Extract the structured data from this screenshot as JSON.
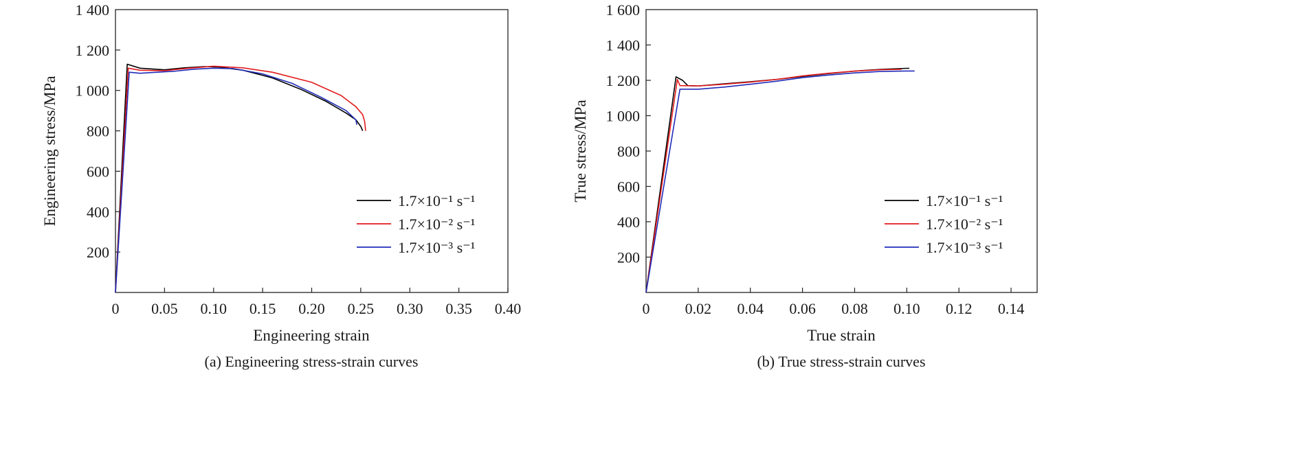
{
  "chart_data": [
    {
      "type": "line",
      "title": "(a) Engineering stress-strain curves",
      "xlabel": "Engineering strain",
      "ylabel": "Engineering stress/MPa",
      "xlim": [
        0,
        0.4
      ],
      "ylim": [
        0,
        1400
      ],
      "x_ticks": [
        0,
        0.05,
        0.1,
        0.15,
        0.2,
        0.25,
        0.3,
        0.35,
        0.4
      ],
      "x_tick_labels": [
        "0",
        "0.05",
        "0.10",
        "0.15",
        "0.20",
        "0.25",
        "0.30",
        "0.35",
        "0.40"
      ],
      "y_ticks": [
        200,
        400,
        600,
        800,
        1000,
        1200,
        1400
      ],
      "y_tick_labels": [
        "200",
        "400",
        "600",
        "800",
        "1 000",
        "1 200",
        "1 400"
      ],
      "grid": false,
      "legend_position": "right-middle",
      "series": [
        {
          "name": "1.7×10⁻¹ s⁻¹",
          "color": "#000000",
          "x": [
            0,
            0.012,
            0.025,
            0.05,
            0.07,
            0.09,
            0.105,
            0.13,
            0.16,
            0.19,
            0.215,
            0.235,
            0.245,
            0.25,
            0.252
          ],
          "y": [
            0,
            1130,
            1110,
            1102,
            1112,
            1118,
            1116,
            1100,
            1062,
            1003,
            945,
            888,
            855,
            822,
            800
          ]
        },
        {
          "name": "1.7×10⁻² s⁻¹",
          "color": "#e31a1c",
          "x": [
            0,
            0.013,
            0.025,
            0.05,
            0.075,
            0.1,
            0.13,
            0.16,
            0.2,
            0.23,
            0.245,
            0.252,
            0.254,
            0.255
          ],
          "y": [
            0,
            1110,
            1100,
            1098,
            1110,
            1120,
            1112,
            1090,
            1040,
            975,
            920,
            880,
            845,
            800
          ]
        },
        {
          "name": "1.7×10⁻³ s⁻¹",
          "color": "#1f2bb8",
          "x": [
            0,
            0.014,
            0.025,
            0.05,
            0.06,
            0.08,
            0.1,
            0.12,
            0.15,
            0.18,
            0.21,
            0.235,
            0.245,
            0.246
          ],
          "y": [
            0,
            1090,
            1085,
            1092,
            1095,
            1105,
            1110,
            1108,
            1082,
            1035,
            965,
            900,
            855,
            830
          ]
        }
      ]
    },
    {
      "type": "line",
      "title": "(b) True stress-strain curves",
      "xlabel": "True strain",
      "ylabel": "True stress/MPa",
      "xlim": [
        0,
        0.15
      ],
      "ylim": [
        0,
        1600
      ],
      "x_ticks": [
        0,
        0.02,
        0.04,
        0.06,
        0.08,
        0.1,
        0.12,
        0.14
      ],
      "x_tick_labels": [
        "0",
        "0.02",
        "0.04",
        "0.06",
        "0.08",
        "0.10",
        "0.12",
        "0.14"
      ],
      "y_ticks": [
        200,
        400,
        600,
        800,
        1000,
        1200,
        1400,
        1600
      ],
      "y_tick_labels": [
        "200",
        "400",
        "600",
        "800",
        "1 000",
        "1 200",
        "1 400",
        "1 600"
      ],
      "grid": false,
      "legend_position": "right-middle",
      "series": [
        {
          "name": "1.7×10⁻¹ s⁻¹",
          "color": "#000000",
          "x": [
            0,
            0.0115,
            0.014,
            0.016,
            0.02,
            0.03,
            0.04,
            0.05,
            0.06,
            0.07,
            0.08,
            0.09,
            0.1,
            0.101
          ],
          "y": [
            0,
            1220,
            1200,
            1170,
            1168,
            1180,
            1192,
            1205,
            1222,
            1238,
            1252,
            1262,
            1268,
            1268
          ]
        },
        {
          "name": "1.7×10⁻² s⁻¹",
          "color": "#e31a1c",
          "x": [
            0,
            0.012,
            0.013,
            0.02,
            0.03,
            0.04,
            0.05,
            0.06,
            0.07,
            0.08,
            0.09,
            0.098
          ],
          "y": [
            0,
            1205,
            1170,
            1168,
            1178,
            1190,
            1205,
            1225,
            1240,
            1252,
            1260,
            1262
          ]
        },
        {
          "name": "1.7×10⁻³ s⁻¹",
          "color": "#1f2bb8",
          "x": [
            0,
            0.013,
            0.02,
            0.03,
            0.04,
            0.05,
            0.06,
            0.07,
            0.08,
            0.09,
            0.1,
            0.103
          ],
          "y": [
            0,
            1150,
            1150,
            1162,
            1178,
            1195,
            1215,
            1230,
            1242,
            1250,
            1253,
            1253
          ]
        }
      ]
    }
  ]
}
